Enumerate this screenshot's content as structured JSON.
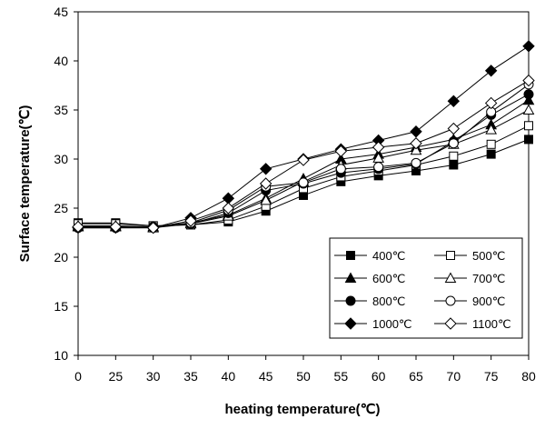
{
  "chart_data": {
    "type": "line",
    "xlabel": "heating temperature(℃)",
    "ylabel": "Surface temperature(℃)",
    "categories": [
      "0",
      "25",
      "30",
      "35",
      "40",
      "45",
      "50",
      "55",
      "60",
      "65",
      "70",
      "75",
      "80"
    ],
    "yticks": [
      "10",
      "15",
      "20",
      "25",
      "30",
      "35",
      "40",
      "45"
    ],
    "ylim": [
      10,
      45
    ],
    "grid": false,
    "legend_position": "bottom-right",
    "series": [
      {
        "name": "400℃",
        "marker": "square-filled",
        "values": [
          23.5,
          23.5,
          23.2,
          23.3,
          23.6,
          24.7,
          26.3,
          27.7,
          28.3,
          28.8,
          29.4,
          30.5,
          32.0
        ]
      },
      {
        "name": "500℃",
        "marker": "square-open",
        "values": [
          23.4,
          23.4,
          23.2,
          23.3,
          23.8,
          25.2,
          27.0,
          28.2,
          28.8,
          29.4,
          30.3,
          31.5,
          33.4
        ]
      },
      {
        "name": "600℃",
        "marker": "triangle-filled",
        "values": [
          23.2,
          23.2,
          23.1,
          23.5,
          24.3,
          26.0,
          28.0,
          30.0,
          30.5,
          31.2,
          32.0,
          33.5,
          36.0
        ]
      },
      {
        "name": "700℃",
        "marker": "triangle-open",
        "values": [
          23.1,
          23.1,
          23.0,
          23.4,
          24.2,
          25.8,
          27.7,
          29.4,
          30.1,
          30.9,
          31.5,
          33.0,
          35.0
        ]
      },
      {
        "name": "800℃",
        "marker": "circle-filled",
        "values": [
          23.0,
          23.0,
          23.1,
          23.4,
          24.5,
          26.8,
          27.5,
          28.6,
          29.0,
          29.5,
          31.8,
          34.5,
          36.6
        ]
      },
      {
        "name": "900℃",
        "marker": "circle-open",
        "values": [
          23.0,
          23.0,
          23.0,
          23.5,
          24.8,
          27.2,
          27.6,
          29.0,
          29.2,
          29.6,
          31.6,
          34.8,
          37.6
        ]
      },
      {
        "name": "1000℃",
        "marker": "diamond-filled",
        "values": [
          23.0,
          23.0,
          23.0,
          24.0,
          26.0,
          29.0,
          30.0,
          31.0,
          31.9,
          32.8,
          35.9,
          39.0,
          41.5
        ]
      },
      {
        "name": "1100℃",
        "marker": "diamond-open",
        "values": [
          23.1,
          23.1,
          23.0,
          23.7,
          25.0,
          27.5,
          29.9,
          30.8,
          31.2,
          31.6,
          33.1,
          35.7,
          38.0
        ]
      }
    ]
  }
}
